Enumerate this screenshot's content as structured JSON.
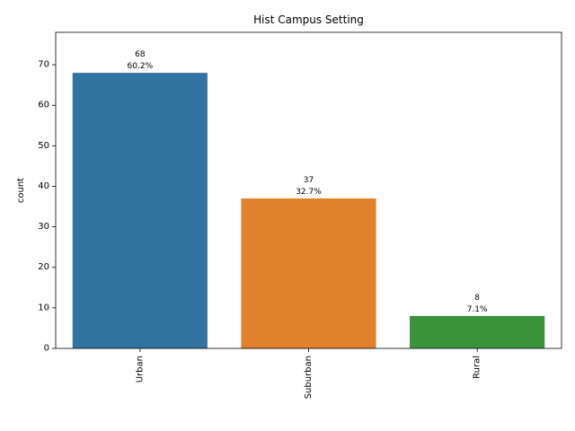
{
  "chart_data": {
    "type": "bar",
    "title": "Hist Campus Setting",
    "xlabel": "",
    "ylabel": "count",
    "categories": [
      "Urban",
      "Suburban",
      "Rural"
    ],
    "values": [
      68,
      37,
      8
    ],
    "data_labels": [
      {
        "count": "68",
        "percent": "60.2%"
      },
      {
        "count": "37",
        "percent": "32.7%"
      },
      {
        "count": "8",
        "percent": "7.1%"
      }
    ],
    "colors": [
      "#3274a1",
      "#e1812c",
      "#3a923a"
    ],
    "ylim": [
      0,
      78
    ],
    "yticks": [
      0,
      10,
      20,
      30,
      40,
      50,
      60,
      70
    ],
    "x_tick_rotation": "vertical",
    "grid": false,
    "legend": "none"
  }
}
